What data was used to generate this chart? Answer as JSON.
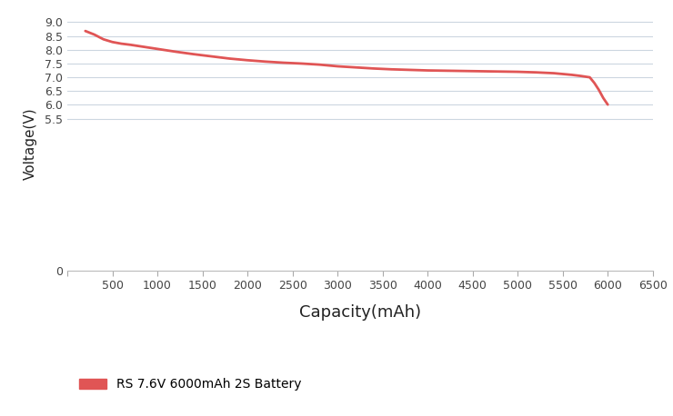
{
  "title": "",
  "xlabel": "Capacity(mAh)",
  "ylabel": "Voltage(V)",
  "line_color": "#e05555",
  "line_width": 2.0,
  "background_color": "#ffffff",
  "legend_label": "RS 7.6V 6000mAh 2S Battery",
  "xlim": [
    0,
    6500
  ],
  "ylim": [
    0,
    9.2
  ],
  "xticks": [
    0,
    500,
    1000,
    1500,
    2000,
    2500,
    3000,
    3500,
    4000,
    4500,
    5000,
    5500,
    6000,
    6500
  ],
  "xtick_labels": [
    "",
    "500",
    "1000",
    "1500",
    "2000",
    "2500",
    "3000",
    "3500",
    "4000",
    "4500",
    "5000",
    "5500",
    "6000",
    "6500"
  ],
  "yticks": [
    0,
    5.5,
    6.0,
    6.5,
    7.0,
    7.5,
    8.0,
    8.5,
    9.0
  ],
  "ytick_labels": [
    "0",
    "5.5",
    "6.0",
    "6.5",
    "7.0",
    "7.5",
    "8.0",
    "8.5",
    "9.0"
  ],
  "grid_color": "#ccd6e0",
  "grid_yticks": [
    5.5,
    6.0,
    6.5,
    7.0,
    7.5,
    8.0,
    8.5,
    9.0
  ],
  "capacity": [
    200,
    300,
    400,
    500,
    600,
    700,
    800,
    900,
    1000,
    1200,
    1400,
    1600,
    1800,
    2000,
    2200,
    2400,
    2600,
    2800,
    3000,
    3200,
    3400,
    3600,
    3800,
    4000,
    4200,
    4400,
    4600,
    4800,
    5000,
    5200,
    5400,
    5500,
    5600,
    5700,
    5800,
    5850,
    5900,
    5950,
    6000
  ],
  "voltage": [
    8.68,
    8.55,
    8.38,
    8.28,
    8.22,
    8.18,
    8.13,
    8.08,
    8.03,
    7.93,
    7.84,
    7.76,
    7.68,
    7.62,
    7.57,
    7.53,
    7.5,
    7.46,
    7.4,
    7.36,
    7.32,
    7.29,
    7.27,
    7.25,
    7.24,
    7.23,
    7.22,
    7.21,
    7.2,
    7.18,
    7.15,
    7.12,
    7.09,
    7.05,
    7.0,
    6.8,
    6.55,
    6.25,
    6.01
  ]
}
